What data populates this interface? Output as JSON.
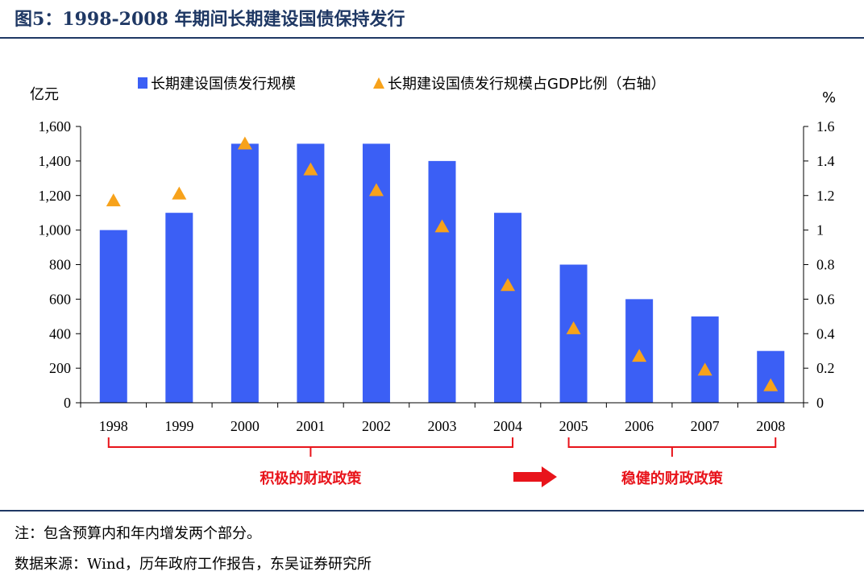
{
  "title": "图5：1998-2008 年期间长期建设国债保持发行",
  "chart_data": {
    "type": "bar",
    "categories": [
      "1998",
      "1999",
      "2000",
      "2001",
      "2002",
      "2003",
      "2004",
      "2005",
      "2006",
      "2007",
      "2008"
    ],
    "series": [
      {
        "name": "长期建设国债发行规模",
        "type": "bar",
        "axis": "left",
        "values": [
          1000,
          1100,
          1500,
          1500,
          1500,
          1400,
          1100,
          800,
          600,
          500,
          300
        ]
      },
      {
        "name": "长期建设国债发行规模占GDP比例（右轴）",
        "type": "scatter",
        "axis": "right",
        "values": [
          1.17,
          1.21,
          1.5,
          1.35,
          1.23,
          1.02,
          0.68,
          0.43,
          0.27,
          0.19,
          0.1
        ]
      }
    ],
    "left_axis": {
      "label": "亿元",
      "ylim": [
        0,
        1600
      ],
      "ticks": [
        "0",
        "200",
        "400",
        "600",
        "800",
        "1,000",
        "1,200",
        "1,400",
        "1,600"
      ]
    },
    "right_axis": {
      "label": "%",
      "ylim": [
        0,
        1.6
      ],
      "ticks": [
        "0",
        "0.2",
        "0.4",
        "0.6",
        "0.8",
        "1",
        "1.2",
        "1.4",
        "1.6"
      ]
    },
    "grid": false,
    "legend_position": "top",
    "colors": {
      "bar": "#3b5ff5",
      "marker": "#f7a21b",
      "phase": "#e8141b",
      "axis": "#000000"
    },
    "annotations": {
      "phase1": {
        "label": "积极的财政政策",
        "from": "1998",
        "to": "2004"
      },
      "phase2": {
        "label": "稳健的财政政策",
        "from": "2005",
        "to": "2008"
      }
    }
  },
  "notes": {
    "n1": "注：包含预算内和年内增发两个部分。",
    "n2": "数据来源：Wind，历年政府工作报告，东吴证券研究所"
  }
}
